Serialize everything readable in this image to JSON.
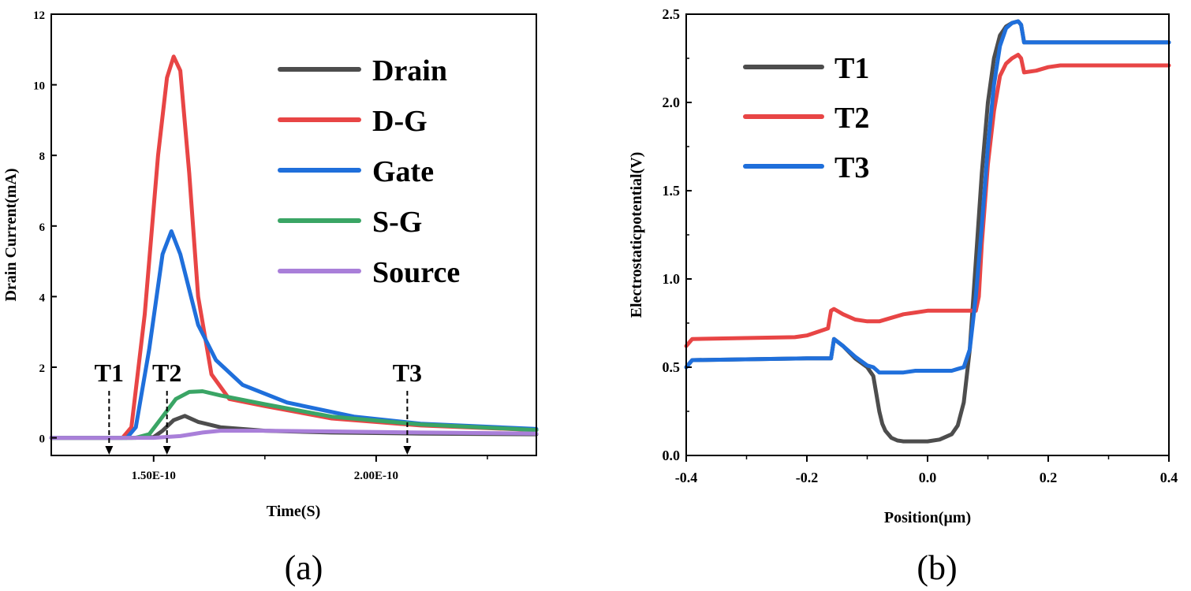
{
  "chart_data": [
    {
      "type": "line",
      "panel_label": "(a)",
      "xlabel": "Time(S)",
      "ylabel": "Drain Current(mA)",
      "xlim": [
        1.27e-10,
        2.36e-10
      ],
      "ylim": [
        -0.5,
        12
      ],
      "xticks": [
        1.5e-10,
        2e-10
      ],
      "xtick_labels": [
        "1.50E-10",
        "2.00E-10"
      ],
      "yticks": [
        0,
        2,
        4,
        6,
        8,
        10,
        12
      ],
      "ytick_labels": [
        "0",
        "2",
        "4",
        "6",
        "8",
        "10",
        "12"
      ],
      "legend_position": "top-right",
      "series": [
        {
          "name": "Drain",
          "color": "#4d4d4d",
          "x": [
            1.27e-10,
            1.45e-10,
            1.5e-10,
            1.52e-10,
            1.545e-10,
            1.57e-10,
            1.6e-10,
            1.65e-10,
            1.75e-10,
            1.9e-10,
            2.1e-10,
            2.36e-10
          ],
          "y": [
            0,
            0,
            0.02,
            0.2,
            0.5,
            0.62,
            0.45,
            0.3,
            0.2,
            0.15,
            0.12,
            0.1
          ]
        },
        {
          "name": "D-G",
          "color": "#e84545",
          "x": [
            1.27e-10,
            1.43e-10,
            1.45e-10,
            1.48e-10,
            1.51e-10,
            1.53e-10,
            1.545e-10,
            1.56e-10,
            1.58e-10,
            1.6e-10,
            1.63e-10,
            1.67e-10,
            1.75e-10,
            1.9e-10,
            2.1e-10,
            2.36e-10
          ],
          "y": [
            0,
            0,
            0.3,
            3.5,
            8.0,
            10.2,
            10.8,
            10.4,
            7.5,
            4.0,
            1.8,
            1.1,
            0.9,
            0.55,
            0.35,
            0.22
          ]
        },
        {
          "name": "Gate",
          "color": "#1f6fdb",
          "x": [
            1.27e-10,
            1.44e-10,
            1.46e-10,
            1.49e-10,
            1.52e-10,
            1.54e-10,
            1.56e-10,
            1.58e-10,
            1.6e-10,
            1.64e-10,
            1.7e-10,
            1.8e-10,
            1.95e-10,
            2.1e-10,
            2.36e-10
          ],
          "y": [
            0,
            0,
            0.3,
            2.5,
            5.2,
            5.85,
            5.2,
            4.2,
            3.2,
            2.2,
            1.5,
            1.0,
            0.6,
            0.4,
            0.25
          ]
        },
        {
          "name": "S-G",
          "color": "#3aa565",
          "x": [
            1.27e-10,
            1.46e-10,
            1.49e-10,
            1.52e-10,
            1.55e-10,
            1.58e-10,
            1.61e-10,
            1.65e-10,
            1.75e-10,
            1.9e-10,
            2.1e-10,
            2.36e-10
          ],
          "y": [
            0,
            0,
            0.1,
            0.6,
            1.1,
            1.3,
            1.32,
            1.2,
            0.95,
            0.6,
            0.38,
            0.22
          ]
        },
        {
          "name": "Source",
          "color": "#a97fd9",
          "x": [
            1.27e-10,
            1.5e-10,
            1.56e-10,
            1.61e-10,
            1.65e-10,
            1.75e-10,
            1.9e-10,
            2.1e-10,
            2.36e-10
          ],
          "y": [
            0,
            0,
            0.05,
            0.15,
            0.2,
            0.2,
            0.18,
            0.15,
            0.12
          ]
        }
      ],
      "annotations": [
        {
          "label": "T1",
          "x": 1.4e-10
        },
        {
          "label": "T2",
          "x": 1.53e-10
        },
        {
          "label": "T3",
          "x": 2.07e-10
        }
      ]
    },
    {
      "type": "line",
      "panel_label": "(b)",
      "xlabel": "Position(μm)",
      "ylabel": "Electrostaticpotential(V)",
      "xlim": [
        -0.4,
        0.4
      ],
      "ylim": [
        0.0,
        2.5
      ],
      "xticks": [
        -0.4,
        -0.2,
        0.0,
        0.2,
        0.4
      ],
      "xtick_labels": [
        "-0.4",
        "-0.2",
        "0.0",
        "0.2",
        "0.4"
      ],
      "yticks": [
        0.0,
        0.5,
        1.0,
        1.5,
        2.0,
        2.5
      ],
      "ytick_labels": [
        "0.0",
        "0.5",
        "1.0",
        "1.5",
        "2.0",
        "2.5"
      ],
      "legend_position": "top-left",
      "series": [
        {
          "name": "T1",
          "color": "#4d4d4d",
          "x": [
            -0.4,
            -0.39,
            -0.2,
            -0.16,
            -0.155,
            -0.14,
            -0.12,
            -0.1,
            -0.09,
            -0.085,
            -0.08,
            -0.075,
            -0.07,
            -0.06,
            -0.05,
            -0.04,
            -0.02,
            0.0,
            0.02,
            0.04,
            0.05,
            0.06,
            0.07,
            0.08,
            0.09,
            0.1,
            0.11,
            0.12,
            0.13,
            0.14,
            0.15,
            0.155,
            0.16,
            0.4
          ],
          "y": [
            0.5,
            0.54,
            0.55,
            0.55,
            0.66,
            0.62,
            0.55,
            0.5,
            0.45,
            0.35,
            0.25,
            0.18,
            0.14,
            0.1,
            0.085,
            0.08,
            0.08,
            0.08,
            0.09,
            0.12,
            0.17,
            0.3,
            0.6,
            1.1,
            1.6,
            2.0,
            2.25,
            2.38,
            2.43,
            2.45,
            2.46,
            2.44,
            2.34,
            2.34
          ]
        },
        {
          "name": "T2",
          "color": "#e84545",
          "x": [
            -0.4,
            -0.39,
            -0.22,
            -0.2,
            -0.165,
            -0.16,
            -0.155,
            -0.14,
            -0.12,
            -0.1,
            -0.08,
            -0.06,
            -0.04,
            -0.02,
            0.0,
            0.02,
            0.04,
            0.06,
            0.08,
            0.085,
            0.09,
            0.1,
            0.11,
            0.12,
            0.13,
            0.14,
            0.15,
            0.155,
            0.16,
            0.18,
            0.2,
            0.22,
            0.4
          ],
          "y": [
            0.62,
            0.66,
            0.67,
            0.68,
            0.72,
            0.82,
            0.83,
            0.8,
            0.77,
            0.76,
            0.76,
            0.78,
            0.8,
            0.81,
            0.82,
            0.82,
            0.82,
            0.82,
            0.82,
            0.9,
            1.2,
            1.65,
            1.95,
            2.15,
            2.22,
            2.25,
            2.27,
            2.25,
            2.17,
            2.18,
            2.2,
            2.21,
            2.21
          ]
        },
        {
          "name": "T3",
          "color": "#1f6fdb",
          "x": [
            -0.4,
            -0.39,
            -0.2,
            -0.165,
            -0.16,
            -0.155,
            -0.14,
            -0.12,
            -0.1,
            -0.09,
            -0.08,
            -0.06,
            -0.04,
            -0.02,
            0.0,
            0.02,
            0.04,
            0.05,
            0.06,
            0.07,
            0.08,
            0.09,
            0.1,
            0.11,
            0.12,
            0.13,
            0.14,
            0.15,
            0.155,
            0.16,
            0.4
          ],
          "y": [
            0.5,
            0.54,
            0.55,
            0.55,
            0.55,
            0.66,
            0.62,
            0.56,
            0.51,
            0.5,
            0.47,
            0.47,
            0.47,
            0.48,
            0.48,
            0.48,
            0.48,
            0.49,
            0.5,
            0.6,
            0.9,
            1.3,
            1.75,
            2.1,
            2.32,
            2.42,
            2.45,
            2.46,
            2.44,
            2.34,
            2.34
          ]
        }
      ]
    }
  ]
}
